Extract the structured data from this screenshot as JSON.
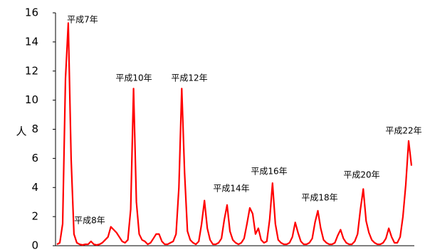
{
  "chart_data": {
    "type": "line",
    "y_label": "人",
    "values": [
      0.1,
      0.2,
      1.5,
      11.5,
      15.3,
      6,
      0.8,
      0.2,
      0.1,
      0.05,
      0.1,
      0.1,
      0.3,
      0.1,
      0.05,
      0.1,
      0.2,
      0.4,
      0.6,
      1.3,
      1.1,
      0.9,
      0.6,
      0.3,
      0.2,
      0.4,
      2.5,
      10.8,
      3,
      0.8,
      0.4,
      0.3,
      0.1,
      0.2,
      0.5,
      0.8,
      0.8,
      0.3,
      0.1,
      0.1,
      0.2,
      0.3,
      0.8,
      4,
      10.8,
      5,
      1,
      0.4,
      0.2,
      0.1,
      0.3,
      1.5,
      3.1,
      1.2,
      0.4,
      0.1,
      0.1,
      0.2,
      0.5,
      1.8,
      2.8,
      1,
      0.4,
      0.2,
      0.1,
      0.2,
      0.5,
      1.5,
      2.6,
      2.2,
      0.8,
      1.2,
      0.4,
      0.2,
      0.3,
      1.8,
      4.3,
      1.5,
      0.4,
      0.2,
      0.1,
      0.1,
      0.2,
      0.6,
      1.6,
      0.9,
      0.3,
      0.1,
      0.1,
      0.2,
      0.5,
      1.6,
      2.4,
      1.2,
      0.4,
      0.2,
      0.1,
      0.1,
      0.2,
      0.7,
      1.1,
      0.5,
      0.2,
      0.1,
      0.1,
      0.3,
      0.8,
      2.5,
      3.9,
      1.7,
      0.9,
      0.4,
      0.2,
      0.1,
      0.1,
      0.2,
      0.5,
      1.2,
      0.6,
      0.2,
      0.2,
      0.6,
      2,
      4.2,
      7.2,
      5.5
    ],
    "color": "#ff0000",
    "ylim": [
      0,
      16
    ],
    "yticks": [
      0,
      2,
      4,
      6,
      8,
      10,
      12,
      14,
      16
    ],
    "annotations": [
      "平成7年",
      "平成8年",
      "平成10年",
      "平成12年",
      "平成14年",
      "平成16年",
      "平成18年",
      "平成20年",
      "平成22年"
    ]
  }
}
